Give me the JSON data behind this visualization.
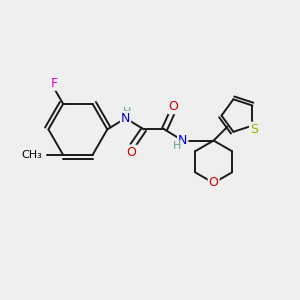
{
  "bg_color": "#efefef",
  "atom_colors": {
    "C": "#000000",
    "N": "#0000cc",
    "O": "#cc0000",
    "F": "#dd00dd",
    "S": "#aaaa00",
    "H": "#5f9ea0"
  },
  "bond_color": "#1a1a1a",
  "figsize": [
    3.0,
    3.0
  ],
  "dpi": 100
}
